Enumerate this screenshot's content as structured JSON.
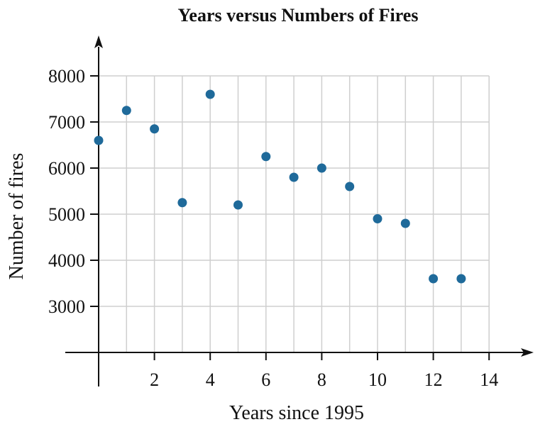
{
  "chart_data": {
    "type": "scatter",
    "title": "Years versus Numbers of Fires",
    "xlabel": "Years since 1995",
    "ylabel": "Number of fires",
    "xlim": [
      0,
      14
    ],
    "ylim": [
      2000,
      8000
    ],
    "x_ticks": [
      2,
      4,
      6,
      8,
      10,
      12,
      14
    ],
    "y_ticks": [
      3000,
      4000,
      5000,
      6000,
      7000,
      8000
    ],
    "grid": true,
    "point_color": "#1f6a9a",
    "x": [
      0,
      1,
      2,
      3,
      4,
      5,
      6,
      7,
      8,
      9,
      10,
      11,
      12,
      13
    ],
    "y": [
      6600,
      7250,
      6850,
      5250,
      7600,
      5200,
      6250,
      5800,
      6000,
      5600,
      4900,
      4800,
      3600,
      3600
    ]
  }
}
